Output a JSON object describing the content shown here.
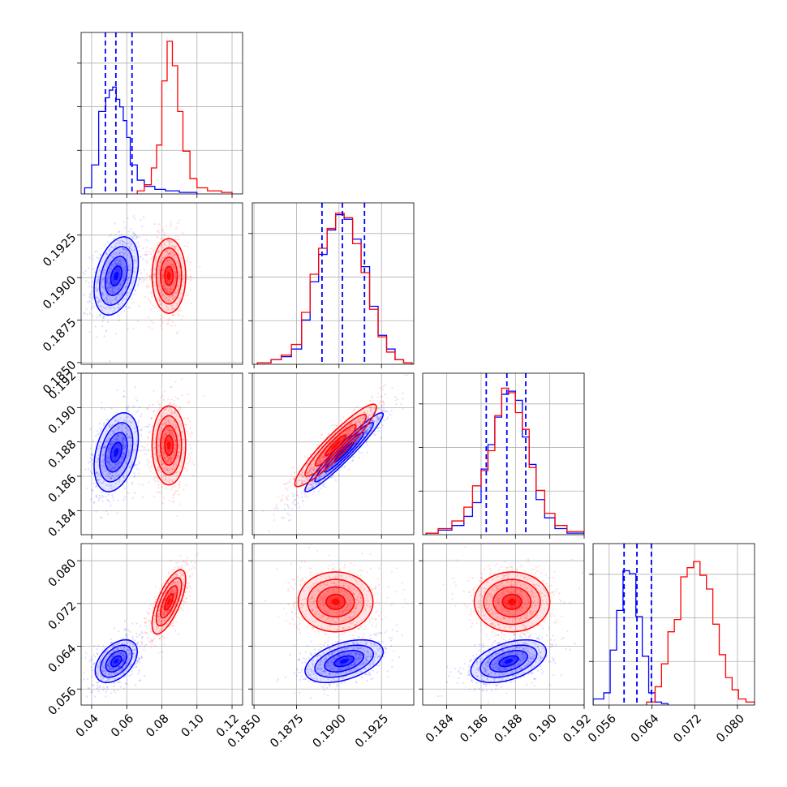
{
  "chart_data": {
    "type": "corner",
    "parameters": [
      "",
      "",
      "",
      ""
    ],
    "colors": {
      "series_a": "#0000ff",
      "series_b": "#ff0000"
    },
    "grid": true,
    "quantile_lines": {
      "color": "#0000ff",
      "style": "dashed"
    },
    "axes": [
      {
        "range": [
          0.034,
          0.126
        ],
        "ticks": [
          0.04,
          0.06,
          0.08,
          0.1,
          0.12
        ],
        "labels": [
          "0.04",
          "0.06",
          "0.08",
          "0.10",
          "0.12"
        ]
      },
      {
        "range": [
          0.1849,
          0.1944
        ],
        "ticks": [
          0.185,
          0.1875,
          0.19,
          0.1925
        ],
        "labels": [
          "0.1850",
          "0.1875",
          "0.1900",
          "0.1925"
        ]
      },
      {
        "range": [
          0.1826,
          0.192
        ],
        "ticks": [
          0.184,
          0.186,
          0.188,
          0.19,
          0.192
        ],
        "labels": [
          "0.184",
          "0.186",
          "0.188",
          "0.190",
          "0.192"
        ]
      },
      {
        "range": [
          0.053,
          0.0832
        ],
        "ticks": [
          0.056,
          0.064,
          0.072,
          0.08
        ],
        "labels": [
          "0.056",
          "0.064",
          "0.072",
          "0.080"
        ]
      }
    ],
    "quantiles": [
      [
        0.0478,
        0.0538,
        0.063
      ],
      [
        0.189,
        0.1902,
        0.1915
      ],
      [
        0.1863,
        0.1875,
        0.1886
      ],
      [
        0.0588,
        0.0612,
        0.0639
      ]
    ],
    "histograms": [
      {
        "blue": {
          "edges": [
            0.036,
            0.04,
            0.044,
            0.048,
            0.05,
            0.052,
            0.054,
            0.056,
            0.058,
            0.06,
            0.062,
            0.066,
            0.07,
            0.076,
            0.082,
            0.09,
            0.1
          ],
          "counts": [
            0.04,
            0.19,
            0.54,
            0.63,
            0.68,
            0.7,
            0.62,
            0.57,
            0.48,
            0.37,
            0.19,
            0.09,
            0.05,
            0.03,
            0.02,
            0.01
          ]
        },
        "red": {
          "edges": [
            0.066,
            0.07,
            0.074,
            0.077,
            0.08,
            0.083,
            0.086,
            0.089,
            0.092,
            0.096,
            0.1,
            0.106,
            0.114,
            0.12
          ],
          "counts": [
            0.02,
            0.06,
            0.17,
            0.32,
            0.74,
            1.0,
            0.84,
            0.54,
            0.28,
            0.1,
            0.04,
            0.02,
            0.01
          ]
        }
      },
      {
        "blue": {
          "edges": [
            0.1852,
            0.186,
            0.1866,
            0.1872,
            0.1878,
            0.1883,
            0.1888,
            0.1893,
            0.1898,
            0.1903,
            0.1908,
            0.1913,
            0.1918,
            0.1923,
            0.1928,
            0.1933,
            0.1938,
            0.1943
          ],
          "counts": [
            0.01,
            0.03,
            0.05,
            0.1,
            0.29,
            0.54,
            0.72,
            0.88,
            0.98,
            0.95,
            0.82,
            0.64,
            0.38,
            0.19,
            0.1,
            0.03,
            0.01
          ]
        },
        "red": {
          "edges": [
            0.1852,
            0.186,
            0.1866,
            0.1872,
            0.1878,
            0.1883,
            0.1888,
            0.1893,
            0.1898,
            0.1903,
            0.1908,
            0.1913,
            0.1918,
            0.1923,
            0.1928,
            0.1933,
            0.1938,
            0.1943
          ],
          "counts": [
            0.01,
            0.03,
            0.06,
            0.13,
            0.34,
            0.59,
            0.76,
            0.89,
            0.99,
            0.96,
            0.79,
            0.6,
            0.36,
            0.18,
            0.08,
            0.03,
            0.01
          ]
        }
      },
      {
        "blue": {
          "edges": [
            0.1828,
            0.1835,
            0.1843,
            0.185,
            0.1855,
            0.186,
            0.1864,
            0.1868,
            0.1872,
            0.1876,
            0.188,
            0.1884,
            0.1888,
            0.1892,
            0.1897,
            0.1903,
            0.191,
            0.192
          ],
          "counts": [
            0.01,
            0.03,
            0.06,
            0.12,
            0.21,
            0.43,
            0.59,
            0.77,
            0.92,
            0.94,
            0.88,
            0.64,
            0.46,
            0.23,
            0.11,
            0.04,
            0.01
          ]
        },
        "red": {
          "edges": [
            0.1828,
            0.1835,
            0.1843,
            0.185,
            0.1855,
            0.186,
            0.1864,
            0.1868,
            0.1872,
            0.1876,
            0.188,
            0.1884,
            0.1888,
            0.1892,
            0.1897,
            0.1903,
            0.191,
            0.192
          ],
          "counts": [
            0.01,
            0.04,
            0.09,
            0.18,
            0.32,
            0.42,
            0.55,
            0.78,
            0.96,
            0.93,
            0.8,
            0.69,
            0.44,
            0.29,
            0.14,
            0.06,
            0.02
          ]
        }
      },
      {
        "blue": {
          "edges": [
            0.053,
            0.055,
            0.0562,
            0.0574,
            0.0586,
            0.0598,
            0.061,
            0.0622,
            0.0634,
            0.0646,
            0.0658,
            0.067
          ],
          "counts": [
            0.04,
            0.08,
            0.36,
            0.62,
            0.88,
            0.86,
            0.58,
            0.32,
            0.08,
            0.02,
            0.01
          ]
        },
        "red": {
          "edges": [
            0.063,
            0.0646,
            0.0658,
            0.067,
            0.0682,
            0.0694,
            0.0706,
            0.0718,
            0.073,
            0.0742,
            0.0754,
            0.0766,
            0.0778,
            0.079,
            0.0802,
            0.0816,
            0.0832
          ],
          "counts": [
            0.02,
            0.12,
            0.27,
            0.48,
            0.56,
            0.84,
            0.9,
            0.94,
            0.85,
            0.76,
            0.53,
            0.33,
            0.18,
            0.1,
            0.04,
            0.02
          ]
        }
      }
    ],
    "pairs": [
      {
        "x": 0,
        "y": 1,
        "blue": {
          "mean": [
            0.054,
            0.1901
          ],
          "sd": [
            0.0063,
            0.00115
          ],
          "rho": 0.35
        },
        "red": {
          "mean": [
            0.084,
            0.1901
          ],
          "sd": [
            0.0048,
            0.0011
          ],
          "rho": 0.0
        }
      },
      {
        "x": 0,
        "y": 2,
        "blue": {
          "mean": [
            0.054,
            0.1874
          ],
          "sd": [
            0.0063,
            0.00115
          ],
          "rho": 0.35
        },
        "red": {
          "mean": [
            0.084,
            0.1878
          ],
          "sd": [
            0.0048,
            0.00115
          ],
          "rho": 0.0
        }
      },
      {
        "x": 1,
        "y": 2,
        "blue": {
          "mean": [
            0.1903,
            0.1874
          ],
          "sd": [
            0.00115,
            0.00115
          ],
          "rho": 0.96
        },
        "red": {
          "mean": [
            0.1898,
            0.1878
          ],
          "sd": [
            0.0012,
            0.0012
          ],
          "rho": 0.93
        }
      },
      {
        "x": 0,
        "y": 3,
        "blue": {
          "mean": [
            0.054,
            0.0612
          ],
          "sd": [
            0.006,
            0.002
          ],
          "rho": 0.45
        },
        "red": {
          "mean": [
            0.084,
            0.0723
          ],
          "sd": [
            0.0048,
            0.003
          ],
          "rho": 0.7
        }
      },
      {
        "x": 1,
        "y": 3,
        "blue": {
          "mean": [
            0.1903,
            0.0612
          ],
          "sd": [
            0.00115,
            0.002
          ],
          "rho": 0.45
        },
        "red": {
          "mean": [
            0.1898,
            0.0723
          ],
          "sd": [
            0.0011,
            0.0028
          ],
          "rho": 0.0
        }
      },
      {
        "x": 2,
        "y": 3,
        "blue": {
          "mean": [
            0.1876,
            0.0612
          ],
          "sd": [
            0.0011,
            0.002
          ],
          "rho": 0.45
        },
        "red": {
          "mean": [
            0.1878,
            0.0723
          ],
          "sd": [
            0.0011,
            0.0028
          ],
          "rho": 0.0
        }
      }
    ]
  }
}
